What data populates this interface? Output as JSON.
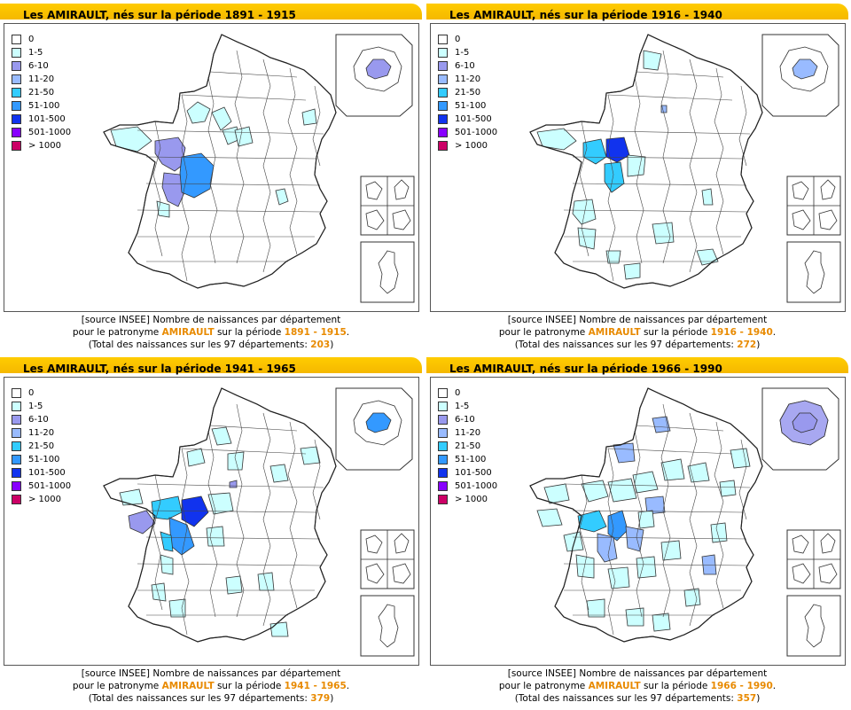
{
  "legend": [
    {
      "label": "0",
      "color": "#ffffff"
    },
    {
      "label": "1-5",
      "color": "#ccffff"
    },
    {
      "label": "6-10",
      "color": "#9999ee"
    },
    {
      "label": "11-20",
      "color": "#99bbff"
    },
    {
      "label": "21-50",
      "color": "#33ccff"
    },
    {
      "label": "51-100",
      "color": "#3399ff"
    },
    {
      "label": "101-500",
      "color": "#1133ee"
    },
    {
      "label": "501-1000",
      "color": "#8800ff"
    },
    {
      "label": "> 1000",
      "color": "#cc0066"
    }
  ],
  "caption": {
    "line1": "[source INSEE] Nombre de naissances par département",
    "line2_a": "pour le patronyme ",
    "line2_b": " sur la période ",
    "line3_a": "(Total des naissances sur les 97 départements: ",
    "line3_b": ")"
  },
  "panels": [
    {
      "title": "Les AMIRAULT, nés sur la période 1891 - 1915",
      "surname": "AMIRAULT",
      "period": "1891 - 1915",
      "total": "203"
    },
    {
      "title": "Les AMIRAULT, nés sur la période 1916 - 1940",
      "surname": "AMIRAULT",
      "period": "1916 - 1940",
      "total": "272"
    },
    {
      "title": "Les AMIRAULT, nés sur la période 1941 - 1965",
      "surname": "AMIRAULT",
      "period": "1941 - 1965",
      "total": "379"
    },
    {
      "title": "Les AMIRAULT, nés sur la période 1966 - 1990",
      "surname": "AMIRAULT",
      "period": "1966 - 1990",
      "total": "357"
    }
  ]
}
